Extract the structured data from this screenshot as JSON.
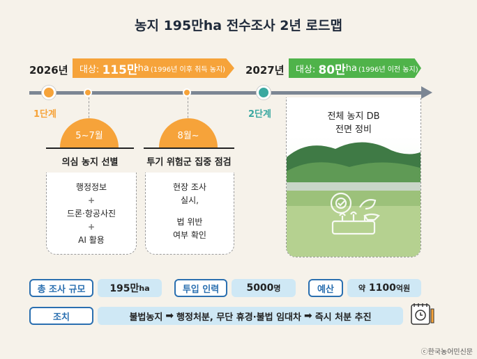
{
  "title": "농지 195만ha 전수조사 2년 로드맵",
  "phase1": {
    "year": "2026년",
    "target_prefix": "대상:",
    "target_value": "115만",
    "target_unit": "ha",
    "target_note": "(1996년 이후 취득 농지)",
    "stage_label": "1단계",
    "step1": {
      "period": "5~7월",
      "task": "의심 농지 선별",
      "items": [
        "행정정보",
        "드론·항공사진",
        "AI 활용"
      ],
      "plus": "+"
    },
    "step2": {
      "period": "8월~",
      "task": "투기 위험군 집중 점검",
      "lines": [
        "현장 조사",
        "실시,",
        "법 위반",
        "여부 확인"
      ]
    }
  },
  "phase2": {
    "year": "2027년",
    "target_prefix": "대상:",
    "target_value": "80만",
    "target_unit": "ha",
    "target_note": "(1996년 이전 농지)",
    "stage_label": "2단계",
    "task_lines": [
      "전체 농지 DB",
      "전면 정비"
    ]
  },
  "summary": {
    "total_label": "총 조사 규모",
    "total_value": "195만",
    "total_unit": "ha",
    "staff_label": "투입 인력",
    "staff_value": "5000",
    "staff_unit": "명",
    "budget_label": "예산",
    "budget_prefix": "약",
    "budget_value": "1100",
    "budget_unit": "억원",
    "action_label": "조치",
    "action_steps": [
      "불법농지",
      "행정처분,  무단 휴경·불법 임대차",
      "즉시 처분 추진"
    ]
  },
  "credit": "ⓒ한국농어민신문",
  "colors": {
    "orange": "#f6a33a",
    "green": "#4fb34a",
    "teal": "#3aa8a0",
    "blue": "#2a6fb0",
    "light_blue": "#cfe8f5"
  },
  "icons": [
    "arrow-right-icon",
    "farm-gear-icon",
    "calendar-icon"
  ]
}
